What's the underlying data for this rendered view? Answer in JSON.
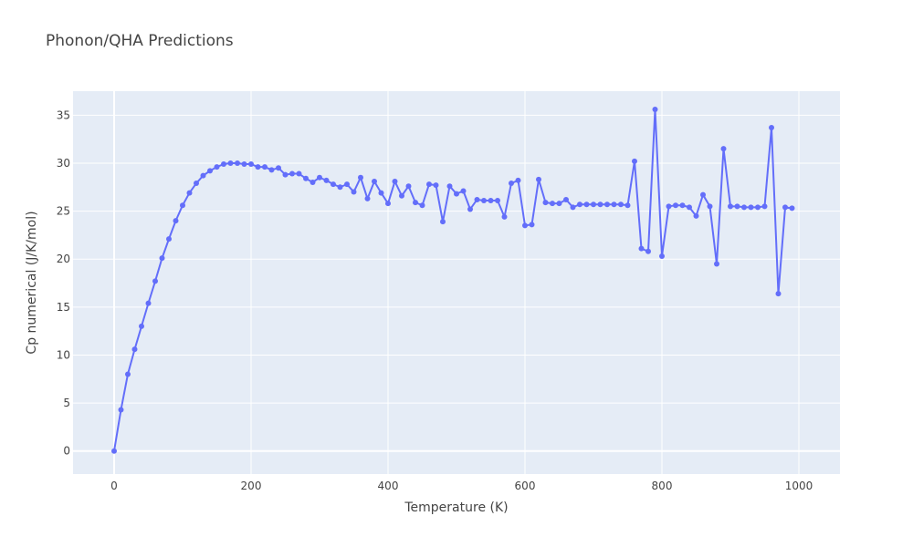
{
  "chart_data": {
    "type": "line",
    "mode": "lines+markers",
    "title": "Phonon/QHA Predictions",
    "xlabel": "Temperature (K)",
    "ylabel": "Cp numerical (J/K/mol)",
    "xlim": [
      -60,
      1060
    ],
    "ylim": [
      -2.4,
      37.5
    ],
    "xticks": [
      0,
      200,
      400,
      600,
      800,
      1000
    ],
    "yticks": [
      0,
      5,
      10,
      15,
      20,
      25,
      30,
      35
    ],
    "grid": true,
    "line_color": "#636efa",
    "plot_bg": "#e5ecf6",
    "series": [
      {
        "x": [
          0,
          10,
          20,
          30,
          40,
          50,
          60,
          70,
          80,
          90,
          100,
          110,
          120,
          130,
          140,
          150,
          160,
          170,
          180,
          190,
          200,
          210,
          220,
          230,
          240,
          250,
          260,
          270,
          280,
          290,
          300,
          310,
          320,
          330,
          340,
          350,
          360,
          370,
          380,
          390,
          400,
          410,
          420,
          430,
          440,
          450,
          460,
          470,
          480,
          490,
          500,
          510,
          520,
          530,
          540,
          550,
          560,
          570,
          580,
          590,
          600,
          610,
          620,
          630,
          640,
          650,
          660,
          670,
          680,
          690,
          700,
          710,
          720,
          730,
          740,
          750,
          760,
          770,
          780,
          790,
          800,
          810,
          820,
          830,
          840,
          850,
          860,
          870,
          880,
          890,
          900,
          910,
          920,
          930,
          940,
          950,
          960,
          970,
          980,
          990
        ],
        "y": [
          0,
          4.3,
          8.0,
          10.6,
          13.0,
          15.4,
          17.7,
          20.1,
          22.1,
          24.0,
          25.6,
          26.9,
          27.9,
          28.7,
          29.2,
          29.6,
          29.9,
          30.0,
          30.0,
          29.9,
          29.9,
          29.6,
          29.6,
          29.3,
          29.5,
          28.8,
          28.9,
          28.9,
          28.4,
          28.0,
          28.5,
          28.2,
          27.8,
          27.5,
          27.8,
          27.0,
          28.5,
          26.3,
          28.1,
          26.9,
          25.8,
          28.1,
          26.6,
          27.6,
          25.9,
          25.6,
          27.8,
          27.7,
          23.9,
          27.6,
          26.8,
          27.1,
          25.2,
          26.2,
          26.1,
          26.1,
          26.1,
          24.4,
          27.9,
          28.2,
          23.5,
          23.6,
          28.3,
          25.9,
          25.8,
          25.8,
          26.2,
          25.4,
          25.7,
          25.7,
          25.7,
          25.7,
          25.7,
          25.7,
          25.7,
          25.6,
          30.2,
          21.1,
          20.8,
          35.6,
          20.3,
          25.5,
          25.6,
          25.6,
          25.4,
          24.5,
          26.7,
          25.5,
          19.5,
          31.5,
          25.5,
          25.5,
          25.4,
          25.4,
          25.4,
          25.5,
          33.7,
          16.4,
          25.4,
          25.3
        ]
      }
    ]
  }
}
